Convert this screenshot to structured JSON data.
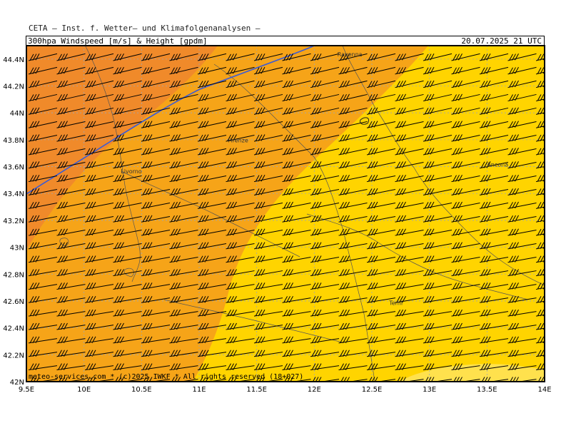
{
  "header": {
    "institute": "CETA — Inst. f. Wetter— und Klimafolgenanalysen —",
    "title": "300hpa_Windspeed_[m/s]_&_Height_[gpdm]",
    "valid_time": "20.07.2025  21  UTC"
  },
  "footer": {
    "credit": "meteo-services.com * (c)2025 IWKF * All rights reserved (18+027)"
  },
  "colors": {
    "band_dark": "#f08a2a",
    "band_mid": "#f6a418",
    "band_light": "#ffd400",
    "band_pale": "#ffe14d",
    "contour_blue": "#3b5bd6",
    "barbs": "#000000",
    "grid": "#9aa6b8"
  },
  "map": {
    "lon_ticks": [
      "9.5E",
      "10E",
      "10.5E",
      "11E",
      "11.5E",
      "12E",
      "12.5E",
      "13E",
      "13.5E",
      "14E"
    ],
    "lat_ticks": [
      "42N",
      "42.2N",
      "42.4N",
      "42.6N",
      "42.8N",
      "43N",
      "43.2N",
      "43.4N",
      "43.6N",
      "43.8N",
      "44N",
      "44.2N",
      "44.4N"
    ],
    "lon_range": [
      9.5,
      14.0
    ],
    "lat_range": [
      42.0,
      44.5
    ],
    "cities": [
      {
        "name": "Ravenna",
        "lon": 12.2,
        "lat": 44.42
      },
      {
        "name": "Firenze",
        "lon": 11.25,
        "lat": 43.78
      },
      {
        "name": "Livorno",
        "lon": 10.32,
        "lat": 43.55
      },
      {
        "name": "Ancona",
        "lon": 13.5,
        "lat": 43.6
      },
      {
        "name": "Terni",
        "lon": 12.65,
        "lat": 42.57
      }
    ]
  }
}
